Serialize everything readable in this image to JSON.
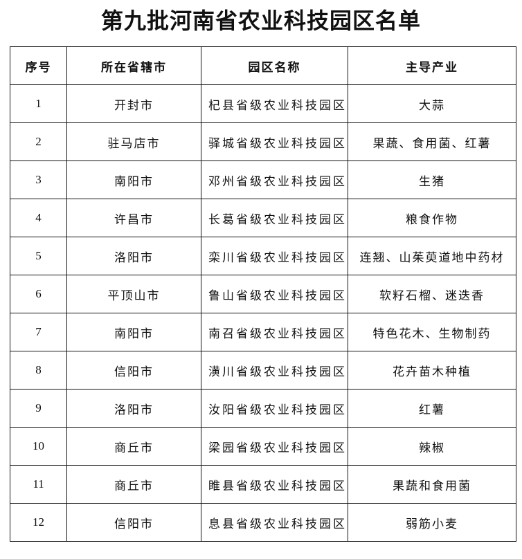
{
  "title": "第九批河南省农业科技园区名单",
  "table": {
    "headers": [
      "序号",
      "所在省辖市",
      "园区名称",
      "主导产业"
    ],
    "rows": [
      [
        "1",
        "开封市",
        "杞县省级农业科技园区",
        "大蒜"
      ],
      [
        "2",
        "驻马店市",
        "驿城省级农业科技园区",
        "果蔬、食用菌、红薯"
      ],
      [
        "3",
        "南阳市",
        "邓州省级农业科技园区",
        "生猪"
      ],
      [
        "4",
        "许昌市",
        "长葛省级农业科技园区",
        "粮食作物"
      ],
      [
        "5",
        "洛阳市",
        "栾川省级农业科技园区",
        "连翘、山茱萸道地中药材"
      ],
      [
        "6",
        "平顶山市",
        "鲁山省级农业科技园区",
        "软籽石榴、迷迭香"
      ],
      [
        "7",
        "南阳市",
        "南召省级农业科技园区",
        "特色花木、生物制药"
      ],
      [
        "8",
        "信阳市",
        "潢川省级农业科技园区",
        "花卉苗木种植"
      ],
      [
        "9",
        "洛阳市",
        "汝阳省级农业科技园区",
        "红薯"
      ],
      [
        "10",
        "商丘市",
        "梁园省级农业科技园区",
        "辣椒"
      ],
      [
        "11",
        "商丘市",
        "睢县省级农业科技园区",
        "果蔬和食用菌"
      ],
      [
        "12",
        "信阳市",
        "息县省级农业科技园区",
        "弱筋小麦"
      ]
    ]
  }
}
